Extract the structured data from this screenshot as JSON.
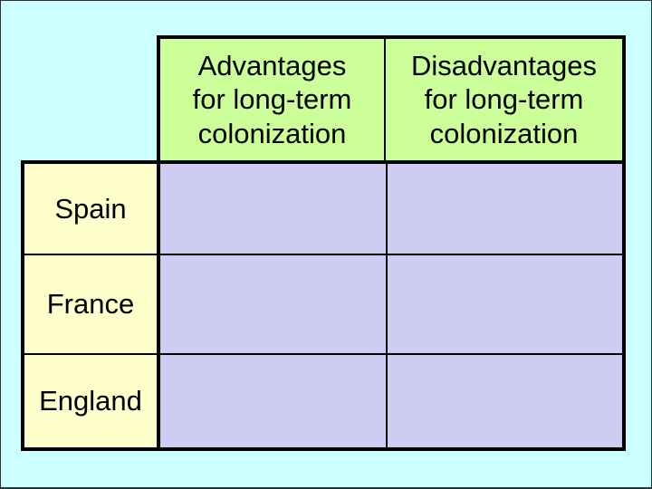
{
  "slide": {
    "background_color": "#CCFFFF",
    "frame_color": "#26343A"
  },
  "table": {
    "colors": {
      "header_fill": "#CCFF99",
      "row_header_fill": "#FFFFCC",
      "body_cell_fill": "#CFCCF4",
      "border": "#000000",
      "text": "#000000"
    },
    "column_headers": [
      {
        "label": "Advantages\nfor long-term\ncolonization"
      },
      {
        "label": "Disadvantages\nfor long-term\ncolonization"
      }
    ],
    "rows": [
      {
        "label": "Spain",
        "advantages": "",
        "disadvantages": ""
      },
      {
        "label": "France",
        "advantages": "",
        "disadvantages": ""
      },
      {
        "label": "England",
        "advantages": "",
        "disadvantages": ""
      }
    ]
  }
}
